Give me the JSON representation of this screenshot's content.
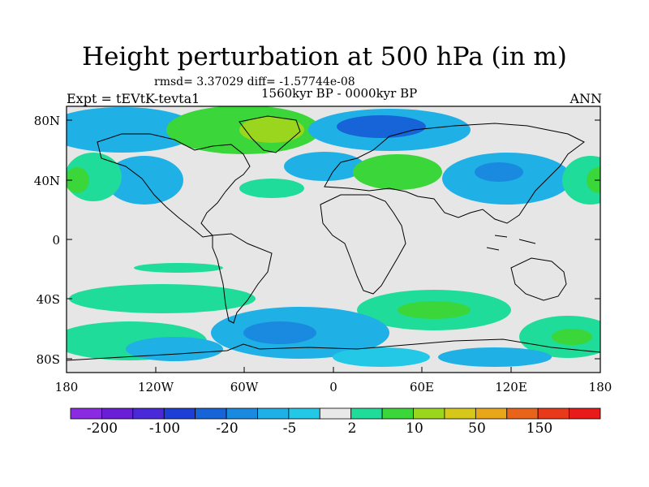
{
  "title": "Height perturbation at 500 hPa (in m)",
  "stats_text": "rmsd= 3.37029  diff= -1.57744e-08",
  "period": "1560kyr BP - 0000kyr BP",
  "experiment": "Expt = tEVtK-tevta1",
  "season": "ANN",
  "lat_labels": [
    "80N",
    "40N",
    "0",
    "40S",
    "80S"
  ],
  "lon_labels": [
    "180",
    "120W",
    "60W",
    "0",
    "60E",
    "120E",
    "180"
  ],
  "colorbar": {
    "labels": [
      "-200",
      "-100",
      "-20",
      "-5",
      "2",
      "10",
      "50",
      "150"
    ],
    "colors": [
      "#8a2be2",
      "#6a1fd6",
      "#4a2ad8",
      "#1e3fd6",
      "#1664d8",
      "#1a8ae0",
      "#1fb0e6",
      "#22c8e6",
      "#e8e8e8",
      "#1fdc9a",
      "#3ad63a",
      "#9ad61e",
      "#d6c81a",
      "#e8a61a",
      "#e8641a",
      "#e83a1a",
      "#e81a1a"
    ]
  },
  "map": {
    "background": "#e6e6e6",
    "coastline_color": "#000000"
  }
}
